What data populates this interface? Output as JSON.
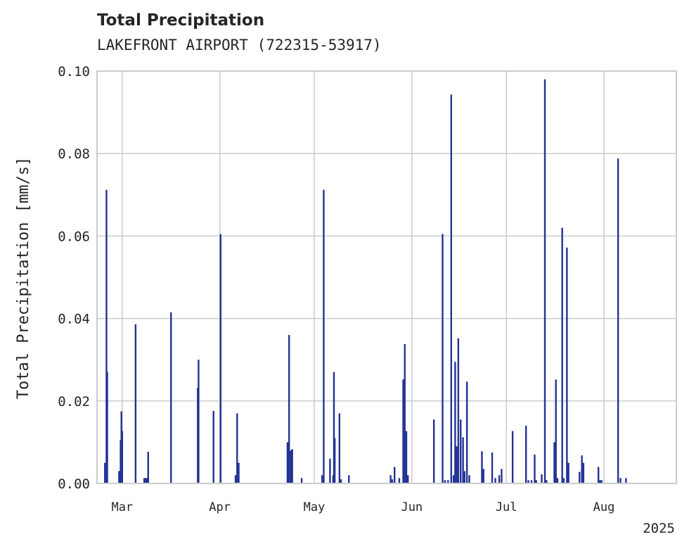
{
  "chart_data": {
    "type": "bar",
    "title": "Total Precipitation",
    "subtitle": "LAKEFRONT AIRPORT (722315-53917)",
    "ylabel": "Total Precipitation [mm/s]",
    "xlabel": "",
    "x_offset_label": "2025",
    "ylim": [
      0,
      0.1
    ],
    "yticks": [
      0.0,
      0.02,
      0.04,
      0.06,
      0.08,
      0.1
    ],
    "ytick_labels": [
      "0.00",
      "0.02",
      "0.04",
      "0.06",
      "0.08",
      "0.10"
    ],
    "xlim": [
      "2025-02-21",
      "2025-08-24"
    ],
    "xticks": [
      "2025-03-01",
      "2025-04-01",
      "2025-05-01",
      "2025-06-01",
      "2025-07-01",
      "2025-08-01"
    ],
    "xtick_labels": [
      "Mar",
      "Apr",
      "May",
      "Jun",
      "Jul",
      "Aug"
    ],
    "grid": true,
    "color": "#233394",
    "x": [
      "2025-02-23T12:00",
      "2025-02-24T00:00",
      "2025-02-24T06:00",
      "2025-02-28T00:00",
      "2025-02-28T12:00",
      "2025-02-28T18:00",
      "2025-03-01T00:00",
      "2025-03-05T06:00",
      "2025-03-08T00:00",
      "2025-03-08T12:00",
      "2025-03-09T00:00",
      "2025-03-09T06:00",
      "2025-03-16T12:00",
      "2025-03-25T00:00",
      "2025-03-25T06:00",
      "2025-03-30T00:00",
      "2025-04-01T06:00",
      "2025-04-06T00:00",
      "2025-04-06T12:00",
      "2025-04-07T00:00",
      "2025-04-22T12:00",
      "2025-04-23T00:00",
      "2025-04-23T12:00",
      "2025-04-24T00:00",
      "2025-04-27T00:00",
      "2025-05-03T12:00",
      "2025-05-04T00:00",
      "2025-05-06T00:00",
      "2025-05-07T00:00",
      "2025-05-07T06:00",
      "2025-05-07T12:00",
      "2025-05-09T00:00",
      "2025-05-09T12:00",
      "2025-05-12T00:00",
      "2025-05-25T06:00",
      "2025-05-25T18:00",
      "2025-05-26T12:00",
      "2025-05-28T00:00",
      "2025-05-29T06:00",
      "2025-05-29T18:00",
      "2025-05-30T06:00",
      "2025-05-30T12:00",
      "2025-05-30T18:00",
      "2025-06-08T00:00",
      "2025-06-10T18:00",
      "2025-06-11T12:00",
      "2025-06-12T12:00",
      "2025-06-13T12:00",
      "2025-06-14T06:00",
      "2025-06-14T18:00",
      "2025-06-15T06:00",
      "2025-06-15T18:00",
      "2025-06-16T12:00",
      "2025-06-17T06:00",
      "2025-06-17T18:00",
      "2025-06-18T12:00",
      "2025-06-19T06:00",
      "2025-06-23T06:00",
      "2025-06-23T18:00",
      "2025-06-26T12:00",
      "2025-06-27T12:00",
      "2025-06-28T18:00",
      "2025-06-29T12:00",
      "2025-07-03T00:00",
      "2025-07-07T06:00",
      "2025-07-08T00:00",
      "2025-07-09T00:00",
      "2025-07-10T00:00",
      "2025-07-10T12:00",
      "2025-07-12T06:00",
      "2025-07-13T06:00",
      "2025-07-13T18:00",
      "2025-07-16T06:00",
      "2025-07-16T18:00",
      "2025-07-17T06:00",
      "2025-07-18T18:00",
      "2025-07-19T06:00",
      "2025-07-20T06:00",
      "2025-07-20T18:00",
      "2025-07-24T06:00",
      "2025-07-25T00:00",
      "2025-07-25T12:00",
      "2025-07-30T06:00",
      "2025-07-30T18:00",
      "2025-07-31T06:00",
      "2025-08-05T12:00",
      "2025-08-06T06:00",
      "2025-08-08T00:00"
    ],
    "values": [
      0.005,
      0.0712,
      0.027,
      0.003,
      0.0105,
      0.0175,
      0.0127,
      0.0386,
      0.0013,
      0.0013,
      0.0013,
      0.0077,
      0.0415,
      0.0232,
      0.03,
      0.0176,
      0.0605,
      0.002,
      0.017,
      0.005,
      0.01,
      0.036,
      0.008,
      0.0083,
      0.0013,
      0.002,
      0.0712,
      0.006,
      0.002,
      0.027,
      0.011,
      0.017,
      0.001,
      0.002,
      0.002,
      0.001,
      0.004,
      0.0013,
      0.0252,
      0.0338,
      0.0127,
      0.002,
      0.002,
      0.0155,
      0.0605,
      0.0008,
      0.0008,
      0.0943,
      0.002,
      0.0295,
      0.009,
      0.0352,
      0.0155,
      0.0112,
      0.003,
      0.0247,
      0.002,
      0.0078,
      0.0035,
      0.0075,
      0.0013,
      0.002,
      0.0035,
      0.0127,
      0.014,
      0.0008,
      0.0008,
      0.007,
      0.0008,
      0.0022,
      0.098,
      0.0008,
      0.01,
      0.0252,
      0.0013,
      0.062,
      0.0013,
      0.0572,
      0.005,
      0.0028,
      0.0068,
      0.005,
      0.004,
      0.0008,
      0.0008,
      0.0788,
      0.0013,
      0.0013
    ]
  }
}
